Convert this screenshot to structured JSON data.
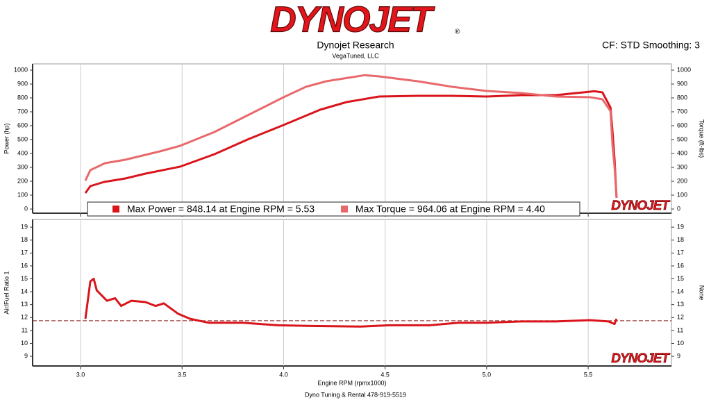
{
  "header": {
    "logo": "DYNOJET",
    "logo_mark": "®",
    "title": "Dynojet Research",
    "subtitle": "VegaTuned, LLC",
    "settings": "CF: STD Smoothing: 3"
  },
  "footer": "Dyno Tuning & Rental 478-919-5519",
  "chart_data": [
    {
      "type": "line",
      "y_label": "Power (hp)",
      "y2_label": "Torque (ft-lbs)",
      "xlim": [
        2.764,
        5.91
      ],
      "ylim": [
        -30,
        1045
      ],
      "y2lim": [
        -30,
        1045
      ],
      "xticks": [
        {
          "value": 3,
          "label": "3.0"
        },
        3.5,
        {
          "value": 4,
          "label": "4.0"
        },
        4.5,
        {
          "value": 5,
          "label": "5.0"
        },
        5.5
      ],
      "yticks": [
        0,
        100,
        200,
        300,
        400,
        500,
        600,
        700,
        800,
        900,
        1000
      ],
      "y2ticks": [
        0,
        100,
        200,
        300,
        400,
        500,
        600,
        700,
        800,
        900,
        1000
      ],
      "grid": true,
      "legend": "bottom",
      "series": [
        {
          "name": "Max Power = 848.14 at Engine RPM = 5.53",
          "color": "#d9141b",
          "x": [
            3.024,
            3.048,
            3.116,
            3.22,
            3.32,
            3.49,
            3.66,
            3.83,
            4.0,
            4.18,
            4.31,
            4.47,
            4.66,
            4.83,
            5.0,
            5.17,
            5.34,
            5.51,
            5.53,
            5.57,
            5.61,
            5.62,
            5.63,
            5.64
          ],
          "values": [
            115,
            165,
            195,
            220,
            255,
            305,
            395,
            505,
            605,
            715,
            770,
            810,
            815,
            815,
            810,
            820,
            820,
            845,
            848.14,
            840,
            730,
            555,
            355,
            80
          ]
        },
        {
          "name": "Max Torque = 964.06 at Engine RPM = 4.40",
          "color": "#e8696b",
          "axis": "y2",
          "x": [
            3.024,
            3.048,
            3.12,
            3.22,
            3.39,
            3.49,
            3.66,
            3.83,
            4.0,
            4.11,
            4.21,
            4.4,
            4.47,
            4.66,
            4.83,
            5.0,
            5.17,
            5.34,
            5.51,
            5.57,
            5.61,
            5.62,
            5.63,
            5.64
          ],
          "values": [
            205,
            280,
            330,
            355,
            415,
            455,
            555,
            680,
            805,
            880,
            920,
            964.06,
            955,
            920,
            880,
            850,
            835,
            810,
            805,
            790,
            705,
            455,
            305,
            80
          ]
        }
      ]
    },
    {
      "type": "line",
      "y_label": "Air/Fuel Ratio 1",
      "y2_label": "None",
      "x_label": "Engine RPM (rpmx1000)",
      "xlim": [
        2.764,
        5.91
      ],
      "ylim": [
        8.25,
        19.6
      ],
      "y2lim": [
        8.25,
        19.6
      ],
      "xticks": [
        {
          "value": 3,
          "label": "3.0"
        },
        3.5,
        {
          "value": 4,
          "label": "4.0"
        },
        4.5,
        {
          "value": 5,
          "label": "5.0"
        },
        5.5
      ],
      "yticks": [
        9,
        10,
        11,
        12,
        13,
        14,
        15,
        16,
        17,
        18,
        19
      ],
      "y2ticks": [
        9,
        10,
        11,
        12,
        13,
        14,
        15,
        16,
        17,
        18,
        19
      ],
      "grid": true,
      "reference_line": 11.75,
      "reference_color": "#8b1a1a",
      "series": [
        {
          "color": "#d9141b",
          "x": [
            3.024,
            3.048,
            3.065,
            3.08,
            3.13,
            3.17,
            3.2,
            3.25,
            3.32,
            3.37,
            3.41,
            3.48,
            3.54,
            3.63,
            3.8,
            3.97,
            4.14,
            4.38,
            4.52,
            4.72,
            4.86,
            5.0,
            5.17,
            5.34,
            5.51,
            5.6,
            5.63,
            5.64
          ],
          "values": [
            11.9,
            14.8,
            15.0,
            14.1,
            13.3,
            13.5,
            12.9,
            13.3,
            13.2,
            12.9,
            13.1,
            12.3,
            11.9,
            11.6,
            11.6,
            11.4,
            11.35,
            11.3,
            11.4,
            11.4,
            11.6,
            11.6,
            11.7,
            11.7,
            11.8,
            11.7,
            11.5,
            11.9
          ]
        }
      ]
    }
  ]
}
